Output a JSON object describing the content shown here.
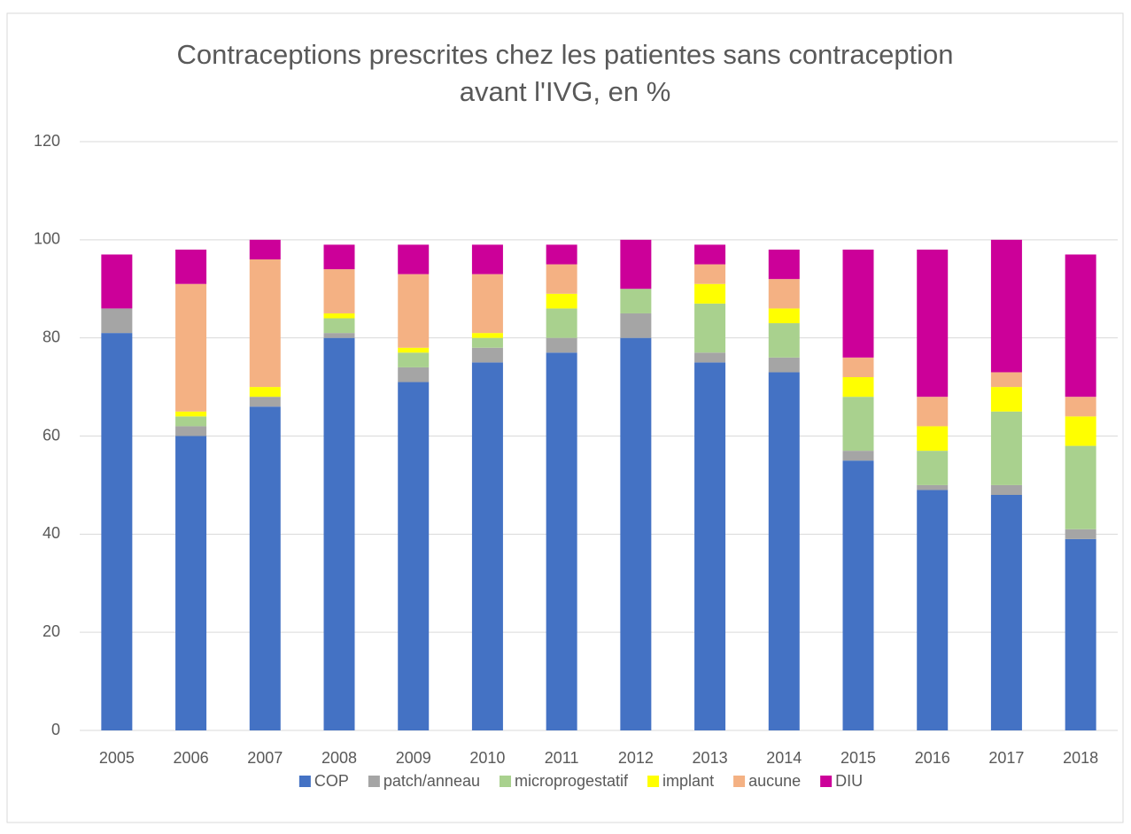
{
  "chart_data": {
    "type": "stacked_bar",
    "title": [
      "Contraceptions prescrites chez les patientes sans contraception",
      "avant l'IVG, en %"
    ],
    "categories": [
      "2005",
      "2006",
      "2007",
      "2008",
      "2009",
      "2010",
      "2011",
      "2012",
      "2013",
      "2014",
      "2015",
      "2016",
      "2017",
      "2018"
    ],
    "series": [
      {
        "name": "COP",
        "color": "#4472c4",
        "values": [
          81,
          60,
          66,
          80,
          71,
          75,
          77,
          80,
          75,
          73,
          55,
          49,
          48,
          39
        ]
      },
      {
        "name": "patch/anneau",
        "color": "#a5a5a5",
        "values": [
          5,
          2,
          2,
          1,
          3,
          3,
          3,
          5,
          2,
          3,
          2,
          1,
          2,
          2
        ]
      },
      {
        "name": "microprogestatif",
        "color": "#a9d18e",
        "values": [
          0,
          2,
          0,
          3,
          3,
          2,
          6,
          5,
          10,
          7,
          11,
          7,
          15,
          17
        ]
      },
      {
        "name": "implant",
        "color": "#ffff00",
        "values": [
          0,
          1,
          2,
          1,
          1,
          1,
          3,
          0,
          4,
          3,
          4,
          5,
          5,
          6
        ]
      },
      {
        "name": "aucune",
        "color": "#f4b183",
        "values": [
          0,
          26,
          26,
          9,
          15,
          12,
          6,
          0,
          4,
          6,
          4,
          6,
          3,
          4
        ]
      },
      {
        "name": "DIU",
        "color": "#cc0099",
        "values": [
          11,
          7,
          4,
          5,
          6,
          6,
          4,
          10,
          4,
          6,
          22,
          30,
          27,
          29
        ]
      }
    ],
    "ylim": [
      0,
      120
    ],
    "yticks": [
      0,
      20,
      40,
      60,
      80,
      100,
      120
    ],
    "grid": true,
    "legend": "bottom"
  }
}
